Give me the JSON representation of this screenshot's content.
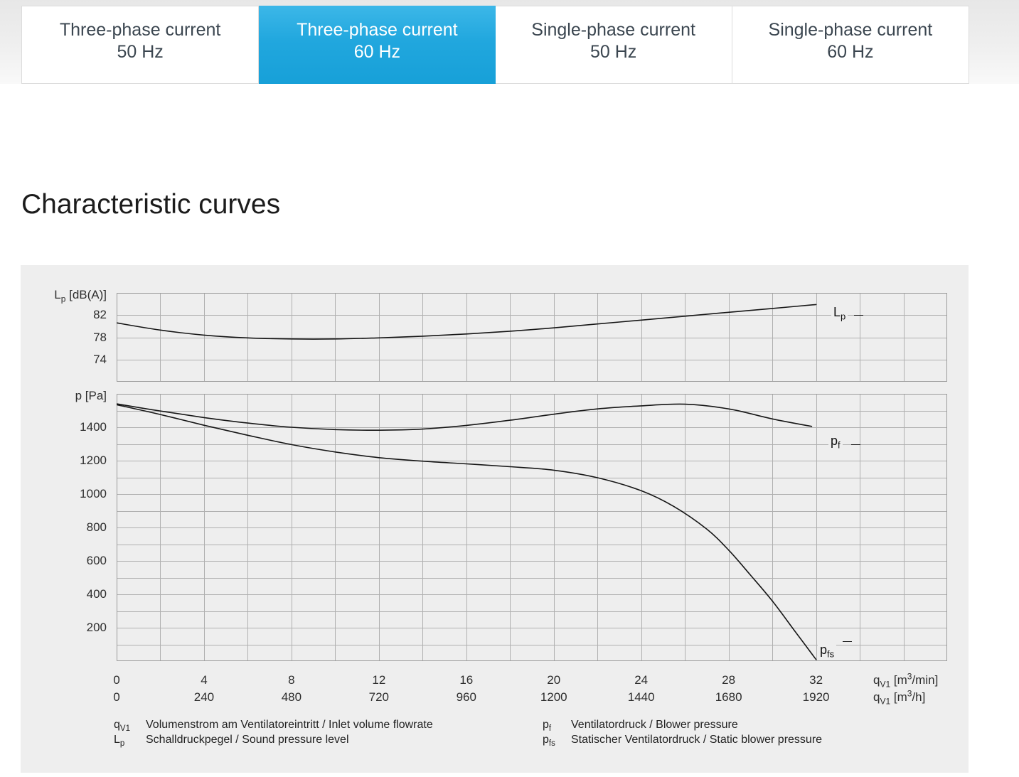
{
  "tabs": [
    {
      "line1": "Three-phase current",
      "line2": "50 Hz",
      "active": false
    },
    {
      "line1": "Three-phase current",
      "line2": "60 Hz",
      "active": true
    },
    {
      "line1": "Single-phase current",
      "line2": "50 Hz",
      "active": false
    },
    {
      "line1": "Single-phase current",
      "line2": "60 Hz",
      "active": false
    }
  ],
  "heading": "Characteristic curves",
  "chart_data": [
    {
      "type": "line",
      "ylabel_parts": {
        "pre": "L",
        "sub": "p",
        "post": " [dB(A)]"
      },
      "ylim": [
        70,
        86
      ],
      "ygrid_step": 4,
      "yticks": [
        82,
        78,
        74
      ],
      "xlim": [
        0,
        38
      ],
      "xgrid_step": 2,
      "grid": true,
      "series": [
        {
          "label": {
            "base": "L",
            "sub": "p"
          },
          "x": [
            0,
            2,
            4,
            6,
            8,
            10,
            12,
            14,
            16,
            18,
            20,
            22,
            24,
            26,
            28,
            30,
            32
          ],
          "y": [
            80.6,
            79.3,
            78.4,
            77.9,
            77.7,
            77.7,
            77.9,
            78.2,
            78.6,
            79.1,
            79.7,
            80.4,
            81.1,
            81.8,
            82.5,
            83.2,
            83.9
          ]
        }
      ]
    },
    {
      "type": "line",
      "ylabel_parts": {
        "pre": "p",
        "sub": "",
        "post": " [Pa]"
      },
      "ylim": [
        0,
        1600
      ],
      "ygrid_step": 100,
      "yticks": [
        1400,
        1200,
        1000,
        800,
        600,
        400,
        200
      ],
      "xlim": [
        0,
        38
      ],
      "xgrid_step": 2,
      "grid": true,
      "series": [
        {
          "label": {
            "base": "p",
            "sub": "f"
          },
          "x": [
            0,
            2,
            4,
            6,
            8,
            10,
            12,
            14,
            16,
            18,
            20,
            22,
            24,
            26,
            28,
            30,
            31.8
          ],
          "y": [
            1540,
            1497,
            1458,
            1425,
            1400,
            1386,
            1382,
            1389,
            1411,
            1442,
            1478,
            1510,
            1528,
            1538,
            1510,
            1450,
            1405
          ]
        },
        {
          "label": {
            "base": "p",
            "sub": "fs"
          },
          "x": [
            0,
            2,
            4,
            6,
            8,
            10,
            12,
            14,
            16,
            18,
            20,
            22,
            24,
            25.5,
            27,
            28,
            29,
            30,
            31,
            32
          ],
          "y": [
            1535,
            1476,
            1412,
            1352,
            1296,
            1252,
            1218,
            1197,
            1181,
            1164,
            1143,
            1098,
            1020,
            925,
            790,
            665,
            515,
            360,
            185,
            10
          ]
        }
      ]
    }
  ],
  "xaxis": {
    "ticks_m3min": [
      "0",
      "4",
      "8",
      "12",
      "16",
      "20",
      "24",
      "28",
      "32"
    ],
    "ticks_m3h": [
      "0",
      "240",
      "480",
      "720",
      "960",
      "1200",
      "1440",
      "1680",
      "1920"
    ],
    "unit_min": {
      "pre": "q",
      "sub": "V1",
      "mid": " [m",
      "sup": "3",
      "post": "/min]"
    },
    "unit_h": {
      "pre": "q",
      "sub": "V1",
      "mid": " [m",
      "sup": "3",
      "post": "/h]"
    }
  },
  "legend": {
    "left": [
      {
        "sym": {
          "base": "q",
          "sub": "V1"
        },
        "text": "Volumenstrom am Ventilatoreintritt / Inlet volume flowrate"
      },
      {
        "sym": {
          "base": "L",
          "sub": "p"
        },
        "text": "Schalldruckpegel / Sound pressure level"
      }
    ],
    "right": [
      {
        "sym": {
          "base": "p",
          "sub": "f"
        },
        "text": "Ventilatordruck / Blower pressure"
      },
      {
        "sym": {
          "base": "p",
          "sub": "fs"
        },
        "text": "Statischer Ventilatordruck / Static blower pressure"
      }
    ]
  },
  "colors": {
    "active_tab": "#21a7de",
    "active_tab_light": "#3cb7e8",
    "active_tab_dark": "#17a0d8",
    "curve": "#161616",
    "panel_bg": "#eeeeee",
    "grid_line": "#b0b0b0",
    "plot_border": "#9b9b9b"
  }
}
